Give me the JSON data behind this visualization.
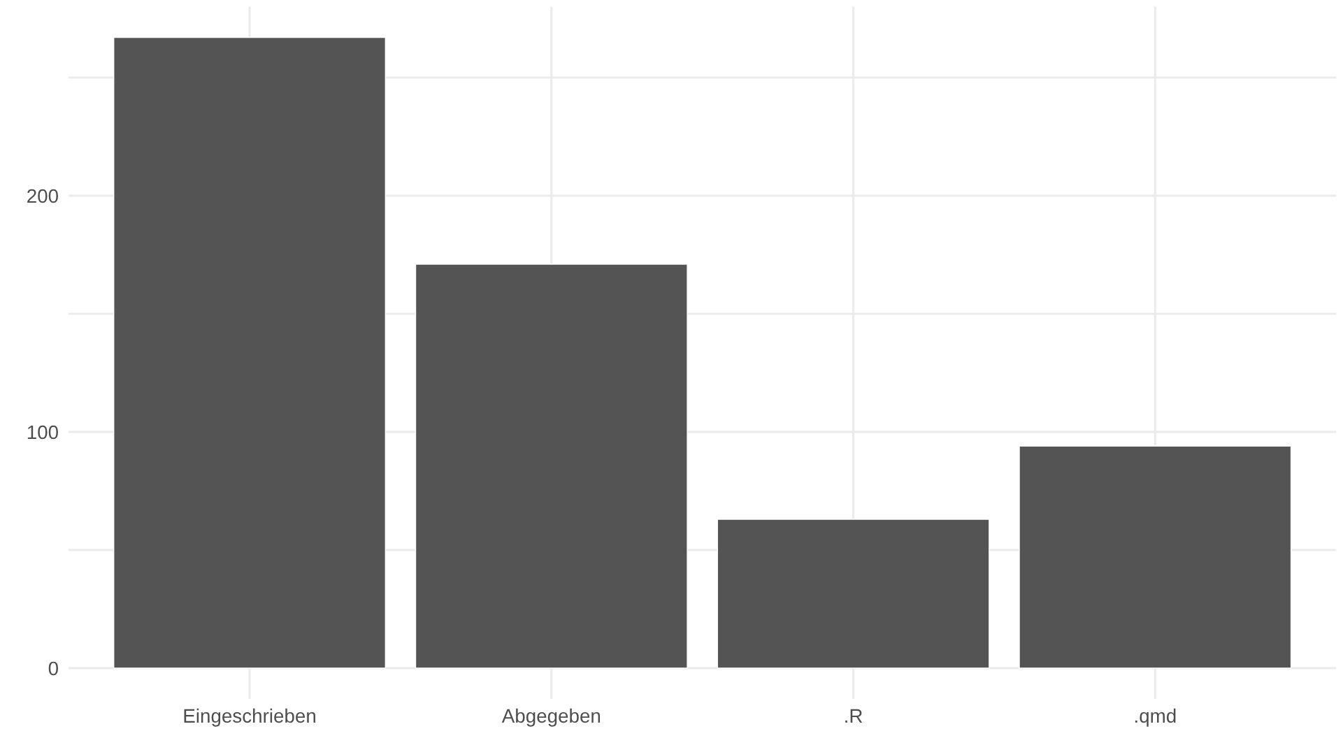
{
  "chart_data": {
    "type": "bar",
    "categories": [
      "Eingeschrieben",
      "Abgegeben",
      ".R",
      ".qmd"
    ],
    "values": [
      267,
      171,
      63,
      94
    ],
    "color": "#545454",
    "ylim": [
      -13,
      280
    ],
    "yticks": [
      0,
      {
        "value": 50,
        "label": null
      },
      100,
      {
        "value": 150,
        "label": null
      },
      200,
      {
        "value": 250,
        "label": null
      }
    ],
    "grid": true
  }
}
